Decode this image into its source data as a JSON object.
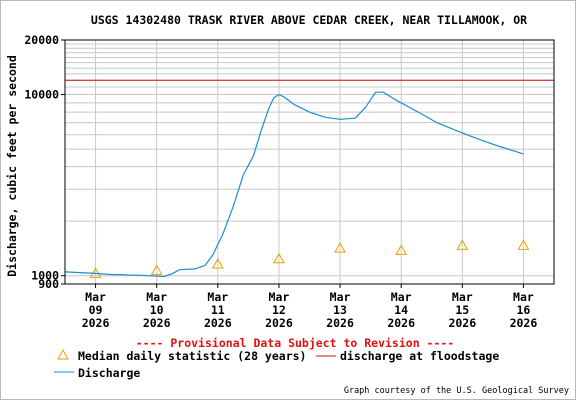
{
  "chart_data": {
    "type": "line",
    "title": "USGS 14302480 TRASK RIVER ABOVE CEDAR CREEK, NEAR TILLAMOOK, OR",
    "ylabel": "Discharge, cubic feet per second",
    "yscale": "log",
    "ylim": [
      900,
      20000
    ],
    "yticks": [
      {
        "value": 900,
        "label": "900"
      },
      {
        "value": 1000,
        "label": "1000"
      },
      {
        "value": 10000,
        "label": "10000"
      },
      {
        "value": 20000,
        "label": "20000"
      }
    ],
    "xlim": [
      "2026-03-08 12:00",
      "2026-03-16 12:00"
    ],
    "xticks": [
      {
        "date": "2026-03-09",
        "label": [
          "Mar",
          "09",
          "2026"
        ]
      },
      {
        "date": "2026-03-10",
        "label": [
          "Mar",
          "10",
          "2026"
        ]
      },
      {
        "date": "2026-03-11",
        "label": [
          "Mar",
          "11",
          "2026"
        ]
      },
      {
        "date": "2026-03-12",
        "label": [
          "Mar",
          "12",
          "2026"
        ]
      },
      {
        "date": "2026-03-13",
        "label": [
          "Mar",
          "13",
          "2026"
        ]
      },
      {
        "date": "2026-03-14",
        "label": [
          "Mar",
          "14",
          "2026"
        ]
      },
      {
        "date": "2026-03-15",
        "label": [
          "Mar",
          "15",
          "2026"
        ]
      },
      {
        "date": "2026-03-16",
        "label": [
          "Mar",
          "16",
          "2026"
        ]
      }
    ],
    "grid": true,
    "legend_position": "bottom",
    "provisional_note": "---- Provisional Data Subject to Revision ----",
    "credit": "Graph courtesy of the U.S. Geological Survey",
    "series": [
      {
        "name": "Discharge",
        "kind": "line",
        "color": "#1a8fd0",
        "points": [
          [
            "2026-03-08 12:00",
            1050
          ],
          [
            "2026-03-09 00:00",
            1030
          ],
          [
            "2026-03-09 06:00",
            1015
          ],
          [
            "2026-03-09 12:00",
            1010
          ],
          [
            "2026-03-09 18:00",
            1005
          ],
          [
            "2026-03-10 00:00",
            995
          ],
          [
            "2026-03-10 03:00",
            990
          ],
          [
            "2026-03-10 06:00",
            1025
          ],
          [
            "2026-03-10 09:00",
            1080
          ],
          [
            "2026-03-10 15:00",
            1090
          ],
          [
            "2026-03-10 19:00",
            1140
          ],
          [
            "2026-03-10 22:00",
            1300
          ],
          [
            "2026-03-11 02:00",
            1700
          ],
          [
            "2026-03-11 06:00",
            2400
          ],
          [
            "2026-03-11 10:00",
            3600
          ],
          [
            "2026-03-11 14:00",
            4600
          ],
          [
            "2026-03-11 17:00",
            6300
          ],
          [
            "2026-03-11 20:00",
            8400
          ],
          [
            "2026-03-11 22:00",
            9600
          ],
          [
            "2026-03-12 00:00",
            10000
          ],
          [
            "2026-03-12 02:00",
            9700
          ],
          [
            "2026-03-12 06:00",
            8800
          ],
          [
            "2026-03-12 12:00",
            8000
          ],
          [
            "2026-03-12 18:00",
            7500
          ],
          [
            "2026-03-13 00:00",
            7300
          ],
          [
            "2026-03-13 06:00",
            7400
          ],
          [
            "2026-03-13 10:00",
            8500
          ],
          [
            "2026-03-13 14:00",
            10300
          ],
          [
            "2026-03-13 17:00",
            10300
          ],
          [
            "2026-03-13 22:00",
            9300
          ],
          [
            "2026-03-14 06:00",
            8100
          ],
          [
            "2026-03-14 14:00",
            7000
          ],
          [
            "2026-03-14 22:00",
            6300
          ],
          [
            "2026-03-15 06:00",
            5700
          ],
          [
            "2026-03-15 14:00",
            5200
          ],
          [
            "2026-03-15 22:00",
            4800
          ],
          [
            "2026-03-16 00:00",
            4700
          ]
        ]
      },
      {
        "name": "Median daily statistic (28 years)",
        "kind": "marker",
        "color": "#e8a000",
        "points": [
          [
            "2026-03-09 00:00",
            1030
          ],
          [
            "2026-03-10 00:00",
            1070
          ],
          [
            "2026-03-11 00:00",
            1160
          ],
          [
            "2026-03-12 00:00",
            1240
          ],
          [
            "2026-03-13 00:00",
            1420
          ],
          [
            "2026-03-14 00:00",
            1380
          ],
          [
            "2026-03-15 00:00",
            1470
          ],
          [
            "2026-03-16 00:00",
            1470
          ]
        ]
      },
      {
        "name": "discharge at floodstage",
        "kind": "hline",
        "color": "#d01010",
        "value": 12000
      }
    ]
  }
}
